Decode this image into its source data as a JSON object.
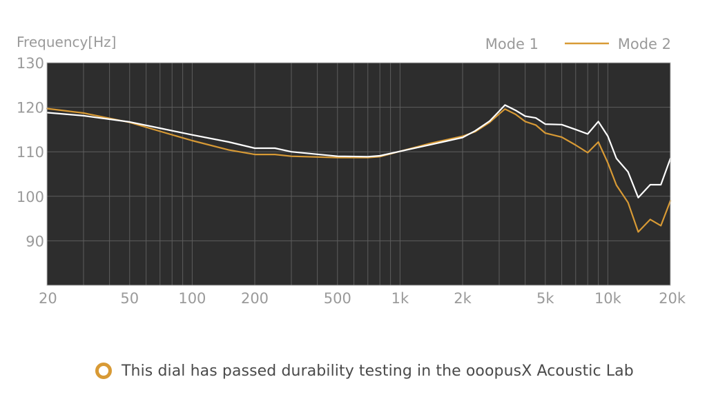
{
  "colors": {
    "plot_bg": "#2d2d2d",
    "grid": "#5e5e5e",
    "mode1": "#ffffff",
    "mode2": "#d89a35",
    "label": "#9a9a9a",
    "accent_ring": "#d89a35"
  },
  "caption": {
    "text": "This dial has passed durability testing in the ooopusX Acoustic Lab",
    "icon": "ring-icon"
  },
  "chart_data": {
    "type": "line",
    "ylabel": "Frequency[Hz]",
    "xscale": "log",
    "xlim": [
      20,
      20000
    ],
    "ylim": [
      80,
      130
    ],
    "grid": true,
    "legend_position": "top-right",
    "x_ticks": [
      {
        "value": 20,
        "label": "20"
      },
      {
        "value": 50,
        "label": "50"
      },
      {
        "value": 100,
        "label": "100"
      },
      {
        "value": 200,
        "label": "200"
      },
      {
        "value": 500,
        "label": "500"
      },
      {
        "value": 1000,
        "label": "1k"
      },
      {
        "value": 2000,
        "label": "2k"
      },
      {
        "value": 5000,
        "label": "5k"
      },
      {
        "value": 10000,
        "label": "10k"
      },
      {
        "value": 20000,
        "label": "20k"
      }
    ],
    "y_ticks": [
      {
        "value": 130,
        "label": "130"
      },
      {
        "value": 120,
        "label": "120"
      },
      {
        "value": 110,
        "label": "110"
      },
      {
        "value": 100,
        "label": "100"
      },
      {
        "value": 90,
        "label": "90"
      }
    ],
    "series": [
      {
        "name": "Mode 1",
        "x": [
          20,
          30,
          50,
          70,
          100,
          150,
          200,
          250,
          300,
          500,
          700,
          800,
          1000,
          1400,
          2000,
          2300,
          2700,
          3000,
          3200,
          3600,
          4000,
          4500,
          5000,
          6000,
          7000,
          8000,
          9000,
          10000,
          11000,
          12500,
          14000,
          16000,
          18000,
          20000
        ],
        "y": [
          118.8,
          118.1,
          116.7,
          115.3,
          113.8,
          112.2,
          110.8,
          110.8,
          110,
          109,
          108.9,
          109.1,
          110.1,
          111.6,
          113.2,
          114.7,
          116.9,
          119.1,
          120.5,
          119.3,
          118,
          117.6,
          116.2,
          116.1,
          115,
          114,
          116.8,
          113.5,
          108.5,
          105.5,
          99.7,
          102.6,
          102.6,
          108.5
        ]
      },
      {
        "name": "Mode 2",
        "x": [
          20,
          30,
          50,
          70,
          100,
          150,
          200,
          250,
          300,
          500,
          700,
          800,
          1000,
          1400,
          2000,
          2300,
          2700,
          3000,
          3200,
          3600,
          4000,
          4500,
          5000,
          6000,
          7000,
          8000,
          9000,
          10000,
          11000,
          12500,
          14000,
          16000,
          18000,
          20000
        ],
        "y": [
          119.7,
          118.7,
          116.6,
          114.6,
          112.5,
          110.4,
          109.4,
          109.4,
          109,
          108.7,
          108.7,
          108.9,
          110.1,
          111.9,
          113.5,
          114.5,
          116.6,
          118.5,
          119.6,
          118.4,
          116.8,
          116,
          114.2,
          113.3,
          111.5,
          109.8,
          112.2,
          107.5,
          102.5,
          98.6,
          92,
          94.8,
          93.4,
          99
        ]
      }
    ]
  }
}
